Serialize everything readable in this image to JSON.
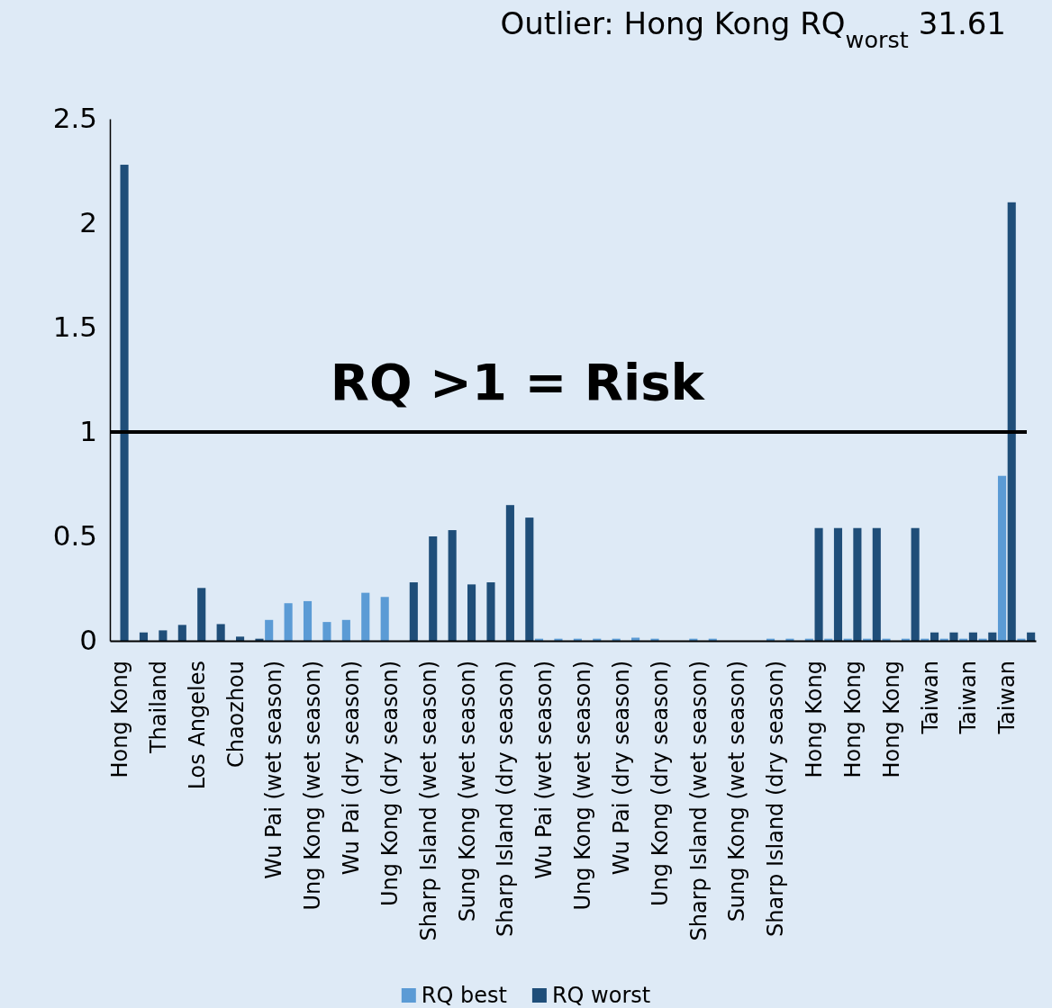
{
  "chart_data": {
    "type": "bar",
    "title": "Outlier: Hong Kong RQ$_{worst}$ 31.61",
    "categories": [
      "Hong Kong",
      null,
      "Thailand",
      null,
      "Los Angeles",
      null,
      "Chaozhou",
      null,
      "Wu Pai (wet season)",
      null,
      "Ung Kong (wet season)",
      null,
      "Wu Pai (dry season)",
      null,
      "Ung Kong (dry season)",
      null,
      "Sharp Island (wet season)",
      null,
      "Sung Kong (wet season)",
      null,
      "Sharp Island (dry season)",
      null,
      "Wu Pai (wet season)",
      null,
      "Ung Kong (wet season)",
      null,
      "Wu Pai (dry season)",
      null,
      "Ung Kong (dry season)",
      null,
      "Sharp Island (wet season)",
      null,
      "Sung Kong (wet season)",
      null,
      "Sharp Island (dry season)",
      null,
      "Hong Kong",
      null,
      "Hong Kong",
      null,
      "Hong Kong",
      null,
      "Taiwan",
      null,
      "Taiwan",
      null,
      "Taiwan",
      null
    ],
    "series": [
      {
        "name": "RQ best",
        "color": "#5b9bd5",
        "values": [
          null,
          null,
          null,
          null,
          null,
          null,
          null,
          null,
          0.1,
          0.18,
          0.19,
          0.09,
          0.1,
          0.23,
          0.21,
          null,
          null,
          null,
          null,
          null,
          null,
          null,
          0.01,
          0.01,
          0.01,
          0.01,
          0.01,
          0.015,
          0.01,
          null,
          0.01,
          0.01,
          null,
          null,
          0.01,
          0.01,
          0.01,
          0.01,
          0.01,
          0.01,
          0.01,
          0.01,
          0.01,
          0.01,
          0.01,
          0.01,
          0.79,
          0.01
        ]
      },
      {
        "name": "RQ worst",
        "color": "#1f4e79",
        "values": [
          2.28,
          0.04,
          0.05,
          0.076,
          0.253,
          0.08,
          0.02,
          0.01,
          null,
          null,
          null,
          null,
          null,
          null,
          null,
          0.28,
          0.5,
          0.53,
          0.27,
          0.28,
          0.65,
          0.59,
          null,
          null,
          null,
          null,
          null,
          null,
          null,
          null,
          null,
          null,
          null,
          null,
          null,
          null,
          0.54,
          0.54,
          0.54,
          0.54,
          null,
          0.54,
          0.04,
          0.04,
          0.04,
          0.04,
          2.1,
          0.04
        ]
      }
    ],
    "ylim": [
      0,
      2.5
    ],
    "yticks": [
      0,
      0.5,
      1,
      1.5,
      2,
      2.5
    ],
    "ref_lines": [
      {
        "axis": "y",
        "value": 1,
        "label": "RQ >1 = Risk",
        "color": "#000000"
      }
    ],
    "legend": "bottom"
  }
}
